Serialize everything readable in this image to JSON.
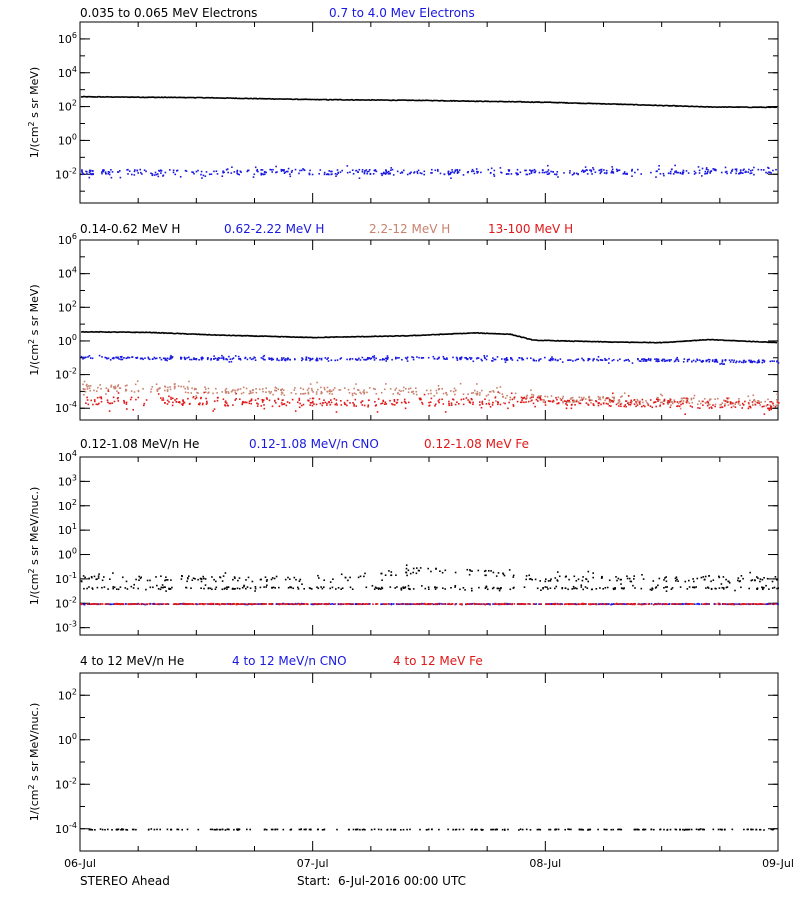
{
  "colors": {
    "black": "#000000",
    "blue": "#1818e0",
    "tan": "#c8826e",
    "red": "#e01818"
  },
  "footer": {
    "left": "STEREO Ahead",
    "center": "Start:  6-Jul-2016 00:00 UTC"
  },
  "chart_data": [
    {
      "type": "scatter",
      "id": "electrons",
      "legend": [
        "0.035 to 0.065 MeV Electrons",
        "0.7 to 4.0 Mev Electrons"
      ],
      "ylabel_main": "1/(cm",
      "ylabel_sup": "2",
      "ylabel_rest": " s sr MeV)",
      "y_scale": "log",
      "ylim": [
        0.0002,
        10000000
      ],
      "y_ticks": [
        {
          "base": "10",
          "exp": "-2",
          "value": 0.01
        },
        {
          "base": "10",
          "exp": "0",
          "value": 1
        },
        {
          "base": "10",
          "exp": "2",
          "value": 100
        },
        {
          "base": "10",
          "exp": "4",
          "value": 10000
        },
        {
          "base": "10",
          "exp": "6",
          "value": 1000000
        }
      ],
      "xlim_days": [
        0,
        3
      ],
      "series": [
        {
          "name": "0.035 to 0.065 MeV Electrons",
          "color": "black",
          "style": "line",
          "points": [
            [
              0,
              380
            ],
            [
              0.5,
              340
            ],
            [
              1.0,
              260
            ],
            [
              1.5,
              230
            ],
            [
              2.0,
              180
            ],
            [
              2.3,
              140
            ],
            [
              2.7,
              95
            ],
            [
              3.0,
              90
            ]
          ]
        },
        {
          "name": "0.7 to 4.0 Mev Electrons",
          "color": "blue",
          "style": "scatter",
          "points": [
            [
              0,
              0.015
            ],
            [
              1.0,
              0.015
            ],
            [
              2.0,
              0.015
            ],
            [
              3.0,
              0.017
            ]
          ],
          "spread": 0.15
        }
      ]
    },
    {
      "type": "scatter",
      "id": "protons",
      "legend": [
        "0.14-0.62 MeV H",
        "0.62-2.22 MeV H",
        "2.2-12 MeV H",
        "13-100 MeV H"
      ],
      "ylabel_main": "1/(cm",
      "ylabel_sup": "2",
      "ylabel_rest": " s sr MeV)",
      "y_scale": "log",
      "ylim": [
        2e-05,
        1000000
      ],
      "y_ticks": [
        {
          "base": "10",
          "exp": "-4",
          "value": 0.0001
        },
        {
          "base": "10",
          "exp": "-2",
          "value": 0.01
        },
        {
          "base": "10",
          "exp": "0",
          "value": 1
        },
        {
          "base": "10",
          "exp": "2",
          "value": 100
        },
        {
          "base": "10",
          "exp": "4",
          "value": 10000
        },
        {
          "base": "10",
          "exp": "6",
          "value": 1000000
        }
      ],
      "xlim_days": [
        0,
        3
      ],
      "series": [
        {
          "name": "0.14-0.62 MeV H",
          "color": "black",
          "style": "line",
          "points": [
            [
              0,
              3.5
            ],
            [
              0.3,
              3.2
            ],
            [
              0.6,
              2.2
            ],
            [
              1.0,
              1.6
            ],
            [
              1.4,
              2.0
            ],
            [
              1.7,
              3.0
            ],
            [
              1.85,
              2.5
            ],
            [
              1.95,
              1.1
            ],
            [
              2.3,
              0.85
            ],
            [
              2.5,
              0.8
            ],
            [
              2.7,
              1.2
            ],
            [
              3.0,
              0.8
            ]
          ]
        },
        {
          "name": "0.62-2.22 MeV H",
          "color": "blue",
          "style": "scatter",
          "points": [
            [
              0,
              0.11
            ],
            [
              0.5,
              0.1
            ],
            [
              1.0,
              0.09
            ],
            [
              1.6,
              0.11
            ],
            [
              1.9,
              0.09
            ],
            [
              2.5,
              0.08
            ],
            [
              3.0,
              0.065
            ]
          ],
          "spread": 0.08
        },
        {
          "name": "2.2-12 MeV H",
          "color": "tan",
          "style": "scatter",
          "points": [
            [
              0,
              0.0019
            ],
            [
              0.6,
              0.0013
            ],
            [
              1.2,
              0.0012
            ],
            [
              1.7,
              0.001
            ],
            [
              2.0,
              0.0004
            ],
            [
              2.5,
              0.0003
            ],
            [
              3.0,
              0.00025
            ]
          ],
          "spread": 0.2
        },
        {
          "name": "13-100 MeV H",
          "color": "red",
          "style": "scatter",
          "points": [
            [
              0,
              0.0003
            ],
            [
              1.0,
              0.00025
            ],
            [
              2.0,
              0.0003
            ],
            [
              3.0,
              0.00015
            ]
          ],
          "spread": 0.25
        }
      ]
    },
    {
      "type": "scatter",
      "id": "heavy-low",
      "legend": [
        "0.12-1.08 MeV/n He",
        "0.12-1.08 MeV/n CNO",
        "0.12-1.08 MeV Fe"
      ],
      "ylabel_main": "1/(cm",
      "ylabel_sup": "2",
      "ylabel_rest": " s sr MeV/nuc.)",
      "y_scale": "log",
      "ylim": [
        0.0005,
        10000
      ],
      "y_ticks": [
        {
          "base": "10",
          "exp": "-3",
          "value": 0.001
        },
        {
          "base": "10",
          "exp": "-2",
          "value": 0.01
        },
        {
          "base": "10",
          "exp": "-1",
          "value": 0.1
        },
        {
          "base": "10",
          "exp": "0",
          "value": 1
        },
        {
          "base": "10",
          "exp": "1",
          "value": 10
        },
        {
          "base": "10",
          "exp": "2",
          "value": 100
        },
        {
          "base": "10",
          "exp": "3",
          "value": 1000
        },
        {
          "base": "10",
          "exp": "4",
          "value": 10000
        }
      ],
      "xlim_days": [
        0,
        3
      ],
      "series": [
        {
          "name": "0.12-1.08 MeV/n He",
          "color": "black",
          "style": "scatter",
          "points": [
            [
              0,
              0.045
            ],
            [
              1.0,
              0.045
            ],
            [
              2.0,
              0.045
            ],
            [
              3.0,
              0.045
            ]
          ],
          "spread": 0.05
        },
        {
          "name": "0.12-1.08 MeV/n He upper",
          "color": "black",
          "style": "scatter",
          "points": [
            [
              0,
              0.11
            ],
            [
              1.0,
              0.11
            ],
            [
              1.5,
              0.25
            ],
            [
              1.7,
              0.2
            ],
            [
              2.0,
              0.11
            ],
            [
              3.0,
              0.11
            ]
          ],
          "spread": 0.12
        },
        {
          "name": "0.12-1.08 MeV/n CNO",
          "color": "blue",
          "style": "scatter",
          "points": [
            [
              0,
              0.01
            ],
            [
              3.0,
              0.01
            ]
          ],
          "spread": 0.01
        },
        {
          "name": "0.12-1.08 MeV Fe",
          "color": "red",
          "style": "scatter",
          "points": [
            [
              0,
              0.01
            ],
            [
              3.0,
              0.01
            ]
          ],
          "spread": 0.01
        }
      ]
    },
    {
      "type": "scatter",
      "id": "heavy-high",
      "legend": [
        "4 to 12 MeV/n He",
        "4 to 12 MeV/n CNO",
        "4 to 12 MeV Fe"
      ],
      "ylabel_main": "1/(cm",
      "ylabel_sup": "2",
      "ylabel_rest": " s sr MeV/nuc.)",
      "y_scale": "log",
      "ylim": [
        1e-05,
        1000
      ],
      "y_ticks": [
        {
          "base": "10",
          "exp": "-4",
          "value": 0.0001
        },
        {
          "base": "10",
          "exp": "-2",
          "value": 0.01
        },
        {
          "base": "10",
          "exp": "0",
          "value": 1
        },
        {
          "base": "10",
          "exp": "2",
          "value": 100
        }
      ],
      "xlim_days": [
        0,
        3
      ],
      "x_ticks": [
        "06-Jul",
        "07-Jul",
        "08-Jul",
        "09-Jul"
      ],
      "series": [
        {
          "name": "4 to 12 MeV/n He",
          "color": "black",
          "style": "scatter",
          "points": [
            [
              0,
              0.0001
            ],
            [
              3.0,
              0.0001
            ]
          ],
          "spread": 0.01
        }
      ]
    }
  ]
}
